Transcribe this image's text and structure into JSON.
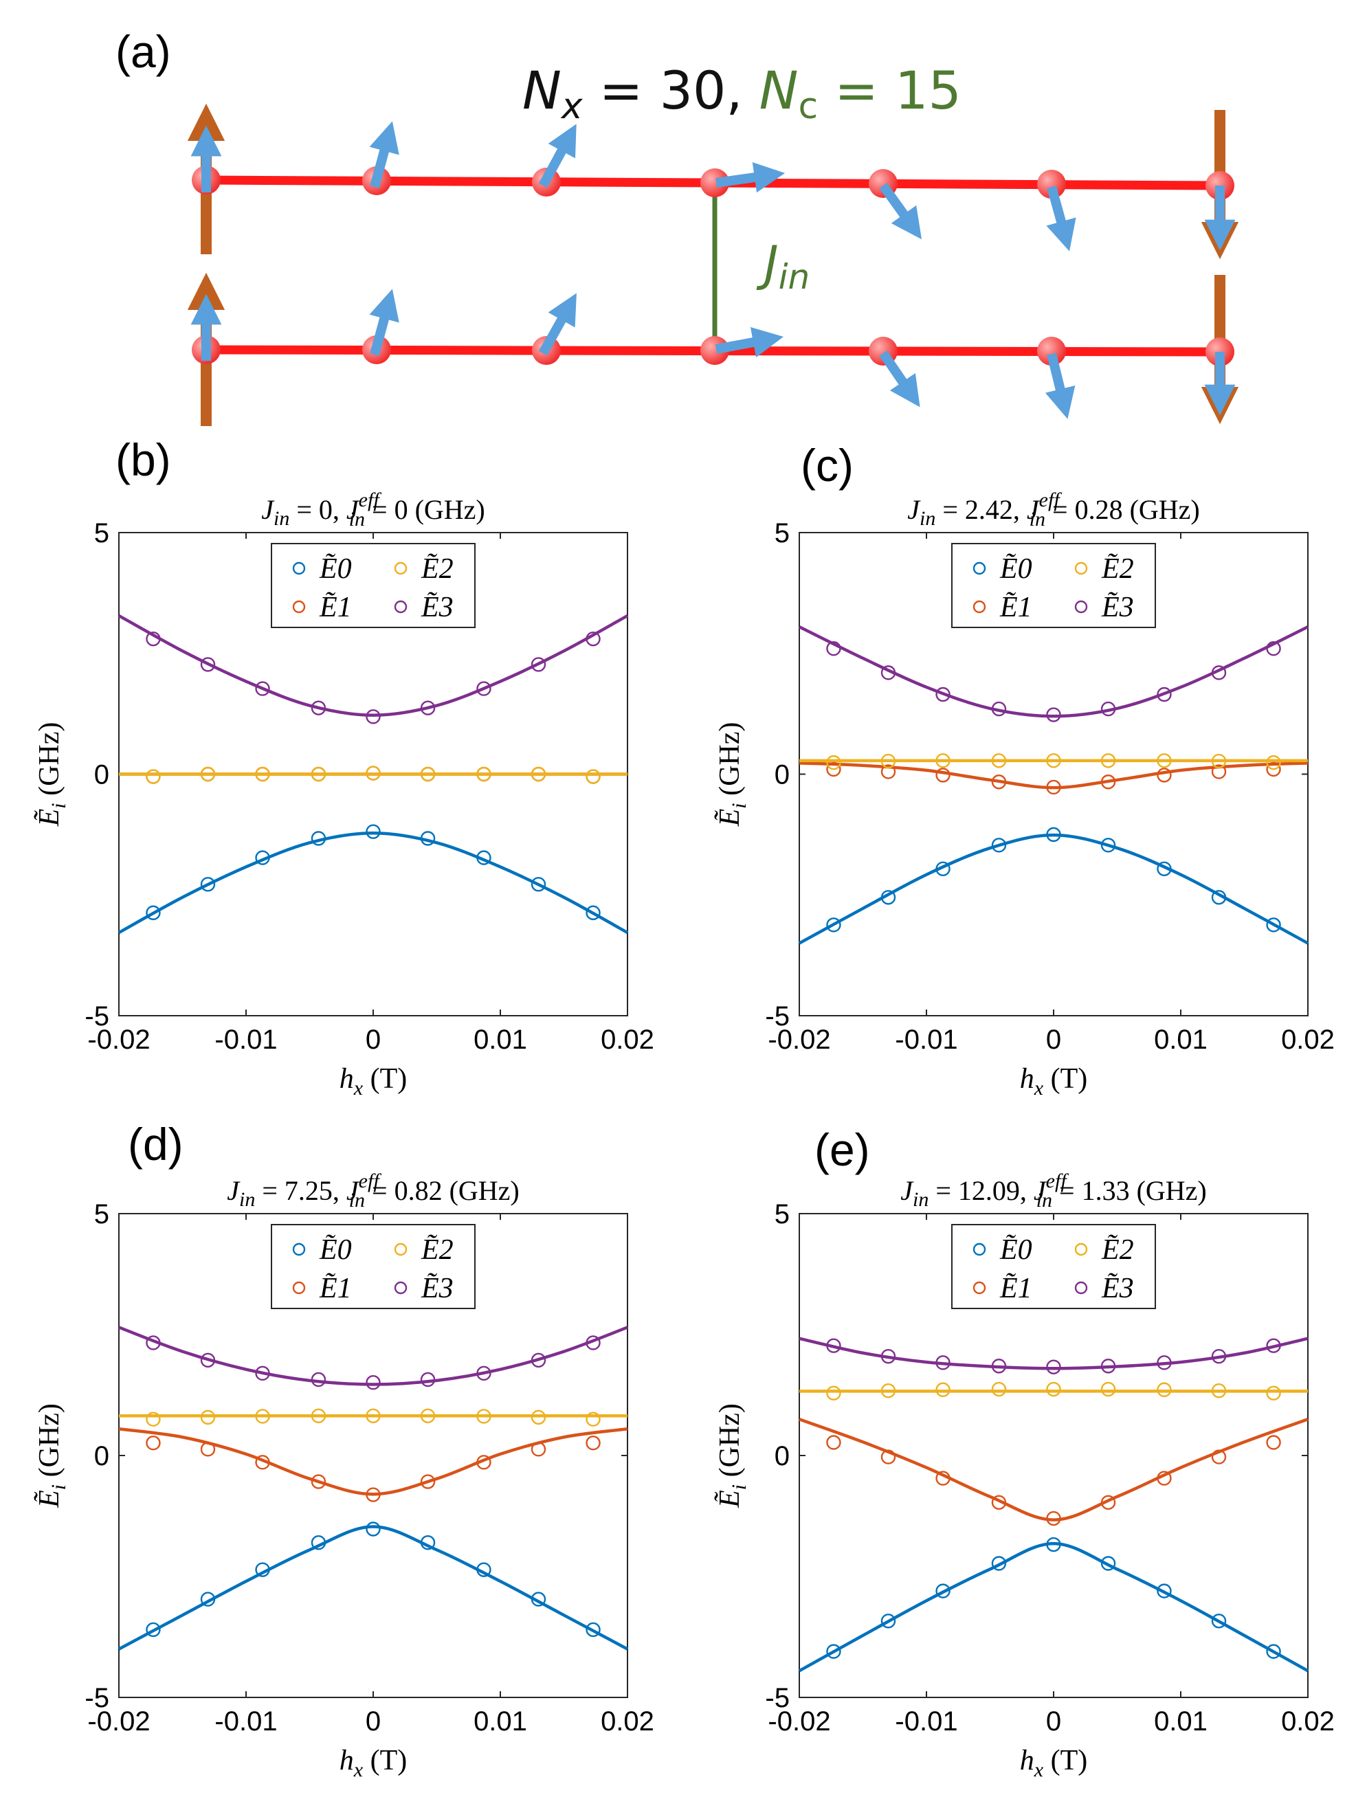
{
  "figure": {
    "model_label": {
      "prefix": "N",
      "prefix_sub": "x",
      "prefix_rest": " = 30, ",
      "nc": "N",
      "nc_sub": "c",
      "nc_rest": " = 15"
    },
    "coupling_label": {
      "main": "J",
      "sub": "in"
    },
    "colors": {
      "chain": "#ff1a1a",
      "site": "#ff4d4d",
      "spin_arrow": "#5aa0dc",
      "edge_spin": "#c06020",
      "coupling": "#4e7a32",
      "model_text": "#111111",
      "nc_text": "#4e7a32"
    }
  },
  "panels": {
    "a": {
      "label": "(a)"
    },
    "b": {
      "label": "(b)"
    },
    "c": {
      "label": "(c)"
    },
    "d": {
      "label": "(d)"
    },
    "e": {
      "label": "(e)"
    }
  },
  "chart_data": [
    {
      "panel": "(b)",
      "type": "line",
      "title": {
        "jin": "J",
        "jin_sub": "in",
        "jin_val": " = 0, ",
        "jeff": "J",
        "jeff_sub": "in",
        "jeff_sup": "eff",
        "jeff_val": " = 0 (GHz)"
      },
      "xlabel": {
        "main": "h",
        "sub": "x",
        "unit": " (T)"
      },
      "ylabel": {
        "main": "Ẽ",
        "sub": "i",
        "unit": " (GHz)"
      },
      "xlim": [
        -0.02,
        0.02
      ],
      "ylim": [
        -5,
        5
      ],
      "xticks": [
        "-0.02",
        "-0.01",
        "0",
        "0.01",
        "0.02"
      ],
      "yticks": [
        "-5",
        "0",
        "5"
      ],
      "legend": [
        "Ẽ0",
        "Ẽ1",
        "Ẽ2",
        "Ẽ3"
      ],
      "legend_position": "top",
      "line_x": [
        -0.02,
        -0.015,
        -0.01,
        -0.005,
        0,
        0.005,
        0.01,
        0.015,
        0.02
      ],
      "series": [
        {
          "name": "Ẽ0",
          "color": "#0072bd",
          "line": [
            -3.28,
            -2.55,
            -1.92,
            -1.42,
            -1.22,
            -1.42,
            -1.92,
            -2.55,
            -3.28
          ],
          "points_x": [
            -0.0173,
            -0.013,
            -0.0087,
            -0.0043,
            0,
            0.0043,
            0.0087,
            0.013,
            0.0173
          ],
          "points_y": [
            -2.87,
            -2.28,
            -1.73,
            -1.33,
            -1.19,
            -1.33,
            -1.73,
            -2.28,
            -2.87
          ]
        },
        {
          "name": "Ẽ1",
          "color": "#d95319",
          "line": [
            0,
            0,
            0,
            0,
            0,
            0,
            0,
            0,
            0
          ],
          "points_x": [
            -0.0173,
            -0.013,
            -0.0087,
            -0.0043,
            0,
            0.0043,
            0.0087,
            0.013,
            0.0173
          ],
          "points_y": [
            -0.05,
            0,
            0,
            0,
            0.02,
            0,
            0,
            0,
            -0.05
          ]
        },
        {
          "name": "Ẽ2",
          "color": "#edb120",
          "line": [
            0,
            0,
            0,
            0,
            0,
            0,
            0,
            0,
            0
          ],
          "points_x": [
            -0.0173,
            -0.013,
            -0.0087,
            -0.0043,
            0,
            0.0043,
            0.0087,
            0.013,
            0.0173
          ],
          "points_y": [
            -0.05,
            0,
            0,
            0,
            0.02,
            0,
            0,
            0,
            -0.05
          ]
        },
        {
          "name": "Ẽ3",
          "color": "#7e2f8e",
          "line": [
            3.28,
            2.55,
            1.92,
            1.42,
            1.22,
            1.42,
            1.92,
            2.55,
            3.28
          ],
          "points_x": [
            -0.0173,
            -0.013,
            -0.0087,
            -0.0043,
            0,
            0.0043,
            0.0087,
            0.013,
            0.0173
          ],
          "points_y": [
            2.8,
            2.27,
            1.77,
            1.37,
            1.19,
            1.37,
            1.77,
            2.27,
            2.8
          ]
        }
      ]
    },
    {
      "panel": "(c)",
      "type": "line",
      "title": {
        "jin": "J",
        "jin_sub": "in",
        "jin_val": " = 2.42, ",
        "jeff": "J",
        "jeff_sub": "in",
        "jeff_sup": "eff",
        "jeff_val": " = 0.28 (GHz)"
      },
      "xlabel": {
        "main": "h",
        "sub": "x",
        "unit": " (T)"
      },
      "ylabel": {
        "main": "Ẽ",
        "sub": "i",
        "unit": " (GHz)"
      },
      "xlim": [
        -0.02,
        0.02
      ],
      "ylim": [
        -5,
        5
      ],
      "xticks": [
        "-0.02",
        "-0.01",
        "0",
        "0.01",
        "0.02"
      ],
      "yticks": [
        "-5",
        "0",
        "5"
      ],
      "legend": [
        "Ẽ0",
        "Ẽ1",
        "Ẽ2",
        "Ẽ3"
      ],
      "legend_position": "top",
      "line_x": [
        -0.02,
        -0.015,
        -0.01,
        -0.005,
        0,
        0.005,
        0.01,
        0.015,
        0.02
      ],
      "series": [
        {
          "name": "Ẽ0",
          "color": "#0072bd",
          "line": [
            -3.5,
            -2.78,
            -2.08,
            -1.53,
            -1.26,
            -1.53,
            -2.08,
            -2.78,
            -3.5
          ],
          "points_x": [
            -0.0173,
            -0.013,
            -0.0087,
            -0.0043,
            0,
            0.0043,
            0.0087,
            0.013,
            0.0173
          ],
          "points_y": [
            -3.12,
            -2.55,
            -1.96,
            -1.47,
            -1.25,
            -1.47,
            -1.96,
            -2.55,
            -3.12
          ]
        },
        {
          "name": "Ẽ1",
          "color": "#d95319",
          "line": [
            0.23,
            0.18,
            0.08,
            -0.12,
            -0.28,
            -0.12,
            0.08,
            0.18,
            0.23
          ],
          "points_x": [
            -0.0173,
            -0.013,
            -0.0087,
            -0.0043,
            0,
            0.0043,
            0.0087,
            0.013,
            0.0173
          ],
          "points_y": [
            0.1,
            0.05,
            -0.02,
            -0.16,
            -0.27,
            -0.16,
            -0.02,
            0.05,
            0.1
          ]
        },
        {
          "name": "Ẽ2",
          "color": "#edb120",
          "line": [
            0.28,
            0.28,
            0.28,
            0.28,
            0.28,
            0.28,
            0.28,
            0.28,
            0.28
          ],
          "points_x": [
            -0.0173,
            -0.013,
            -0.0087,
            -0.0043,
            0,
            0.0043,
            0.0087,
            0.013,
            0.0173
          ],
          "points_y": [
            0.24,
            0.27,
            0.28,
            0.28,
            0.28,
            0.28,
            0.28,
            0.27,
            0.24
          ]
        },
        {
          "name": "Ẽ3",
          "color": "#7e2f8e",
          "line": [
            3.05,
            2.4,
            1.8,
            1.36,
            1.2,
            1.36,
            1.8,
            2.4,
            3.05
          ],
          "points_x": [
            -0.0173,
            -0.013,
            -0.0087,
            -0.0043,
            0,
            0.0043,
            0.0087,
            0.013,
            0.0173
          ],
          "points_y": [
            2.6,
            2.1,
            1.65,
            1.35,
            1.23,
            1.35,
            1.65,
            2.1,
            2.6
          ]
        }
      ]
    },
    {
      "panel": "(d)",
      "type": "line",
      "title": {
        "jin": "J",
        "jin_sub": "in",
        "jin_val": " = 7.25, ",
        "jeff": "J",
        "jeff_sub": "in",
        "jeff_sup": "eff",
        "jeff_val": " = 0.82 (GHz)"
      },
      "xlabel": {
        "main": "h",
        "sub": "x",
        "unit": " (T)"
      },
      "ylabel": {
        "main": "Ẽ",
        "sub": "i",
        "unit": " (GHz)"
      },
      "xlim": [
        -0.02,
        0.02
      ],
      "ylim": [
        -5,
        5
      ],
      "xticks": [
        "-0.02",
        "-0.01",
        "0",
        "0.01",
        "0.02"
      ],
      "yticks": [
        "-5",
        "0",
        "5"
      ],
      "legend": [
        "Ẽ0",
        "Ẽ1",
        "Ẽ2",
        "Ẽ3"
      ],
      "legend_position": "top",
      "line_x": [
        -0.02,
        -0.015,
        -0.01,
        -0.005,
        0,
        0.005,
        0.01,
        0.015,
        0.02
      ],
      "series": [
        {
          "name": "Ẽ0",
          "color": "#0072bd",
          "line": [
            -4.0,
            -3.3,
            -2.6,
            -1.95,
            -1.47,
            -1.95,
            -2.6,
            -3.3,
            -4.0
          ],
          "points_x": [
            -0.0173,
            -0.013,
            -0.0087,
            -0.0043,
            0,
            0.0043,
            0.0087,
            0.013,
            0.0173
          ],
          "points_y": [
            -3.6,
            -2.97,
            -2.36,
            -1.8,
            -1.52,
            -1.8,
            -2.36,
            -2.97,
            -3.6
          ]
        },
        {
          "name": "Ẽ1",
          "color": "#d95319",
          "line": [
            0.55,
            0.38,
            0.03,
            -0.48,
            -0.8,
            -0.48,
            0.03,
            0.38,
            0.55
          ],
          "points_x": [
            -0.0173,
            -0.013,
            -0.0087,
            -0.0043,
            0,
            0.0043,
            0.0087,
            0.013,
            0.0173
          ],
          "points_y": [
            0.26,
            0.13,
            -0.14,
            -0.54,
            -0.81,
            -0.54,
            -0.14,
            0.13,
            0.26
          ]
        },
        {
          "name": "Ẽ2",
          "color": "#edb120",
          "line": [
            0.82,
            0.82,
            0.82,
            0.82,
            0.82,
            0.82,
            0.82,
            0.82,
            0.82
          ],
          "points_x": [
            -0.0173,
            -0.013,
            -0.0087,
            -0.0043,
            0,
            0.0043,
            0.0087,
            0.013,
            0.0173
          ],
          "points_y": [
            0.75,
            0.79,
            0.81,
            0.82,
            0.82,
            0.82,
            0.81,
            0.79,
            0.75
          ]
        },
        {
          "name": "Ẽ3",
          "color": "#7e2f8e",
          "line": [
            2.65,
            2.15,
            1.78,
            1.55,
            1.47,
            1.55,
            1.78,
            2.15,
            2.65
          ],
          "points_x": [
            -0.0173,
            -0.013,
            -0.0087,
            -0.0043,
            0,
            0.0043,
            0.0087,
            0.013,
            0.0173
          ],
          "points_y": [
            2.33,
            1.97,
            1.7,
            1.57,
            1.51,
            1.57,
            1.7,
            1.97,
            2.33
          ]
        }
      ]
    },
    {
      "panel": "(e)",
      "type": "line",
      "title": {
        "jin": "J",
        "jin_sub": "in",
        "jin_val": " = 12.09, ",
        "jeff": "J",
        "jeff_sub": "in",
        "jeff_sup": "eff",
        "jeff_val": " = 1.33 (GHz)"
      },
      "xlabel": {
        "main": "h",
        "sub": "x",
        "unit": " (T)"
      },
      "ylabel": {
        "main": "Ẽ",
        "sub": "i",
        "unit": " (GHz)"
      },
      "xlim": [
        -0.02,
        0.02
      ],
      "ylim": [
        -5,
        5
      ],
      "xticks": [
        "-0.02",
        "-0.01",
        "0",
        "0.01",
        "0.02"
      ],
      "yticks": [
        "-5",
        "0",
        "5"
      ],
      "legend": [
        "Ẽ0",
        "Ẽ1",
        "Ẽ2",
        "Ẽ3"
      ],
      "legend_position": "top",
      "line_x": [
        -0.02,
        -0.015,
        -0.01,
        -0.005,
        0,
        0.005,
        0.01,
        0.015,
        0.02
      ],
      "series": [
        {
          "name": "Ẽ0",
          "color": "#0072bd",
          "line": [
            -4.45,
            -3.72,
            -3.0,
            -2.35,
            -1.82,
            -2.35,
            -3.0,
            -3.72,
            -4.45
          ],
          "points_x": [
            -0.0173,
            -0.013,
            -0.0087,
            -0.0043,
            0,
            0.0043,
            0.0087,
            0.013,
            0.0173
          ],
          "points_y": [
            -4.05,
            -3.42,
            -2.8,
            -2.23,
            -1.84,
            -2.23,
            -2.8,
            -3.42,
            -4.05
          ]
        },
        {
          "name": "Ẽ1",
          "color": "#d95319",
          "line": [
            0.75,
            0.28,
            -0.25,
            -0.85,
            -1.33,
            -0.85,
            -0.25,
            0.28,
            0.75
          ],
          "points_x": [
            -0.0173,
            -0.013,
            -0.0087,
            -0.0043,
            0,
            0.0043,
            0.0087,
            0.013,
            0.0173
          ],
          "points_y": [
            0.27,
            -0.03,
            -0.47,
            -0.97,
            -1.3,
            -0.97,
            -0.47,
            -0.03,
            0.27
          ]
        },
        {
          "name": "Ẽ2",
          "color": "#edb120",
          "line": [
            1.33,
            1.33,
            1.33,
            1.33,
            1.33,
            1.33,
            1.33,
            1.33,
            1.33
          ],
          "points_x": [
            -0.0173,
            -0.013,
            -0.0087,
            -0.0043,
            0,
            0.0043,
            0.0087,
            0.013,
            0.0173
          ],
          "points_y": [
            1.29,
            1.34,
            1.36,
            1.37,
            1.37,
            1.37,
            1.36,
            1.34,
            1.29
          ]
        },
        {
          "name": "Ẽ3",
          "color": "#7e2f8e",
          "line": [
            2.42,
            2.12,
            1.93,
            1.84,
            1.8,
            1.84,
            1.93,
            2.12,
            2.42
          ],
          "points_x": [
            -0.0173,
            -0.013,
            -0.0087,
            -0.0043,
            0,
            0.0043,
            0.0087,
            0.013,
            0.0173
          ],
          "points_y": [
            2.27,
            2.05,
            1.92,
            1.85,
            1.83,
            1.85,
            1.92,
            2.05,
            2.27
          ]
        }
      ]
    }
  ]
}
